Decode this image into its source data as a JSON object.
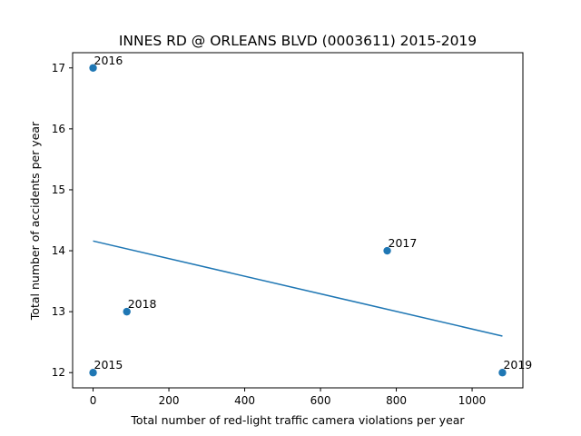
{
  "chart_data": {
    "type": "scatter",
    "title": "INNES RD @ ORLEANS BLVD (0003611) 2015-2019",
    "xlabel": "Total number of red-light traffic camera violations per year",
    "ylabel": "Total number of accidents per year",
    "xlim": [
      -54,
      1134
    ],
    "ylim": [
      11.75,
      17.25
    ],
    "xticks": [
      0,
      200,
      400,
      600,
      800,
      1000
    ],
    "yticks": [
      12,
      13,
      14,
      15,
      16,
      17
    ],
    "grid": false,
    "colors": {
      "points": "#1f77b4",
      "trendline": "#1f77b4"
    },
    "points": [
      {
        "label": "2015",
        "x": 0,
        "y": 12
      },
      {
        "label": "2016",
        "x": 0,
        "y": 17
      },
      {
        "label": "2017",
        "x": 776,
        "y": 14
      },
      {
        "label": "2018",
        "x": 89,
        "y": 13
      },
      {
        "label": "2019",
        "x": 1080,
        "y": 12
      }
    ],
    "trendline": {
      "x": [
        0,
        1080
      ],
      "y": [
        14.16,
        12.6
      ]
    }
  }
}
